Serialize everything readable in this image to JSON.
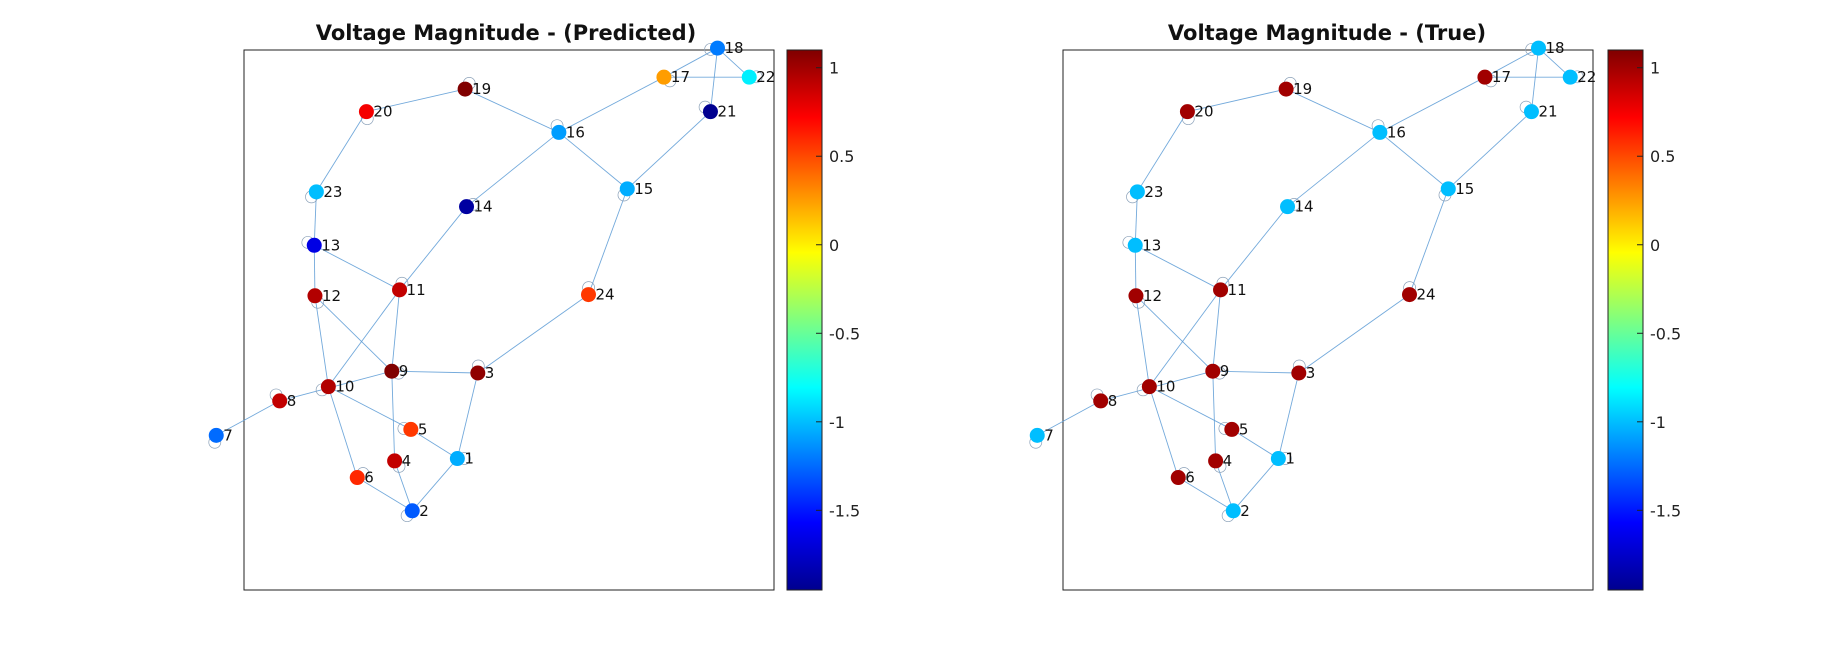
{
  "colorbar": {
    "min": -1.95,
    "max": 1.1,
    "ticks": [
      1,
      0.5,
      0,
      -0.5,
      -1,
      -1.5
    ],
    "tick_labels": [
      "1",
      "0.5",
      "0",
      "-0.5",
      "-1",
      "-1.5"
    ],
    "colormap": "jet"
  },
  "chart_data": [
    {
      "type": "network",
      "title": "Voltage Magnitude - (Predicted)",
      "nodes": [
        {
          "id": "1",
          "x": 1.92,
          "y": 1.22,
          "value": -1.05
        },
        {
          "id": "2",
          "x": 1.28,
          "y": 0.34,
          "value": -1.3
        },
        {
          "id": "3",
          "x": 2.21,
          "y": 2.66,
          "value": 1.05
        },
        {
          "id": "4",
          "x": 1.03,
          "y": 1.18,
          "value": 0.9
        },
        {
          "id": "5",
          "x": 1.26,
          "y": 1.71,
          "value": 0.55
        },
        {
          "id": "6",
          "x": 0.5,
          "y": 0.9,
          "value": 0.6
        },
        {
          "id": "7",
          "x": -1.5,
          "y": 1.61,
          "value": -1.25
        },
        {
          "id": "8",
          "x": -0.6,
          "y": 2.19,
          "value": 0.9
        },
        {
          "id": "9",
          "x": 0.99,
          "y": 2.69,
          "value": 1.1
        },
        {
          "id": "10",
          "x": 0.09,
          "y": 2.43,
          "value": 0.95
        },
        {
          "id": "11",
          "x": 1.1,
          "y": 4.06,
          "value": 0.9
        },
        {
          "id": "12",
          "x": -0.1,
          "y": 3.96,
          "value": 0.95
        },
        {
          "id": "13",
          "x": -0.11,
          "y": 4.81,
          "value": -1.65
        },
        {
          "id": "14",
          "x": 2.05,
          "y": 5.46,
          "value": -1.85
        },
        {
          "id": "15",
          "x": 4.33,
          "y": 5.76,
          "value": -1.05
        },
        {
          "id": "16",
          "x": 3.36,
          "y": 6.71,
          "value": -1.1
        },
        {
          "id": "17",
          "x": 4.85,
          "y": 7.64,
          "value": 0.25
        },
        {
          "id": "18",
          "x": 5.61,
          "y": 8.13,
          "value": -1.2
        },
        {
          "id": "19",
          "x": 2.03,
          "y": 7.44,
          "value": 1.1
        },
        {
          "id": "20",
          "x": 0.63,
          "y": 7.06,
          "value": 0.75
        },
        {
          "id": "21",
          "x": 5.51,
          "y": 7.06,
          "value": -1.9
        },
        {
          "id": "22",
          "x": 6.06,
          "y": 7.64,
          "value": -0.85
        },
        {
          "id": "23",
          "x": -0.08,
          "y": 5.71,
          "value": -1.0
        },
        {
          "id": "24",
          "x": 3.78,
          "y": 3.98,
          "value": 0.55
        }
      ],
      "edges": [
        [
          "1",
          "2"
        ],
        [
          "1",
          "3"
        ],
        [
          "1",
          "5"
        ],
        [
          "2",
          "4"
        ],
        [
          "2",
          "6"
        ],
        [
          "3",
          "9"
        ],
        [
          "3",
          "24"
        ],
        [
          "4",
          "9"
        ],
        [
          "5",
          "10"
        ],
        [
          "6",
          "10"
        ],
        [
          "7",
          "8"
        ],
        [
          "8",
          "9"
        ],
        [
          "9",
          "11"
        ],
        [
          "9",
          "12"
        ],
        [
          "10",
          "11"
        ],
        [
          "10",
          "12"
        ],
        [
          "11",
          "13"
        ],
        [
          "11",
          "14"
        ],
        [
          "12",
          "13"
        ],
        [
          "13",
          "23"
        ],
        [
          "14",
          "16"
        ],
        [
          "15",
          "16"
        ],
        [
          "15",
          "21"
        ],
        [
          "15",
          "24"
        ],
        [
          "16",
          "17"
        ],
        [
          "16",
          "19"
        ],
        [
          "17",
          "18"
        ],
        [
          "17",
          "22"
        ],
        [
          "18",
          "21"
        ],
        [
          "18",
          "22"
        ],
        [
          "19",
          "20"
        ],
        [
          "20",
          "23"
        ]
      ]
    },
    {
      "type": "network",
      "title": "Voltage Magnitude - (True)",
      "nodes": [
        {
          "id": "1",
          "x": 1.92,
          "y": 1.22,
          "value": -1.0
        },
        {
          "id": "2",
          "x": 1.28,
          "y": 0.34,
          "value": -1.0
        },
        {
          "id": "3",
          "x": 2.21,
          "y": 2.66,
          "value": 1.0
        },
        {
          "id": "4",
          "x": 1.03,
          "y": 1.18,
          "value": 1.0
        },
        {
          "id": "5",
          "x": 1.26,
          "y": 1.71,
          "value": 1.0
        },
        {
          "id": "6",
          "x": 0.5,
          "y": 0.9,
          "value": 1.0
        },
        {
          "id": "7",
          "x": -1.5,
          "y": 1.61,
          "value": -1.0
        },
        {
          "id": "8",
          "x": -0.6,
          "y": 2.19,
          "value": 1.0
        },
        {
          "id": "9",
          "x": 0.99,
          "y": 2.69,
          "value": 1.0
        },
        {
          "id": "10",
          "x": 0.09,
          "y": 2.43,
          "value": 1.0
        },
        {
          "id": "11",
          "x": 1.1,
          "y": 4.06,
          "value": 1.0
        },
        {
          "id": "12",
          "x": -0.1,
          "y": 3.96,
          "value": 1.0
        },
        {
          "id": "13",
          "x": -0.11,
          "y": 4.81,
          "value": -1.0
        },
        {
          "id": "14",
          "x": 2.05,
          "y": 5.46,
          "value": -1.0
        },
        {
          "id": "15",
          "x": 4.33,
          "y": 5.76,
          "value": -1.0
        },
        {
          "id": "16",
          "x": 3.36,
          "y": 6.71,
          "value": -1.0
        },
        {
          "id": "17",
          "x": 4.85,
          "y": 7.64,
          "value": 1.0
        },
        {
          "id": "18",
          "x": 5.61,
          "y": 8.13,
          "value": -1.0
        },
        {
          "id": "19",
          "x": 2.03,
          "y": 7.44,
          "value": 1.0
        },
        {
          "id": "20",
          "x": 0.63,
          "y": 7.06,
          "value": 1.0
        },
        {
          "id": "21",
          "x": 5.51,
          "y": 7.06,
          "value": -1.0
        },
        {
          "id": "22",
          "x": 6.06,
          "y": 7.64,
          "value": -1.0
        },
        {
          "id": "23",
          "x": -0.08,
          "y": 5.71,
          "value": -1.0
        },
        {
          "id": "24",
          "x": 3.78,
          "y": 3.98,
          "value": 1.0
        }
      ],
      "edges": [
        [
          "1",
          "2"
        ],
        [
          "1",
          "3"
        ],
        [
          "1",
          "5"
        ],
        [
          "2",
          "4"
        ],
        [
          "2",
          "6"
        ],
        [
          "3",
          "9"
        ],
        [
          "3",
          "24"
        ],
        [
          "4",
          "9"
        ],
        [
          "5",
          "10"
        ],
        [
          "6",
          "10"
        ],
        [
          "7",
          "8"
        ],
        [
          "8",
          "9"
        ],
        [
          "9",
          "11"
        ],
        [
          "9",
          "12"
        ],
        [
          "10",
          "11"
        ],
        [
          "10",
          "12"
        ],
        [
          "11",
          "13"
        ],
        [
          "11",
          "14"
        ],
        [
          "12",
          "13"
        ],
        [
          "13",
          "23"
        ],
        [
          "14",
          "16"
        ],
        [
          "15",
          "16"
        ],
        [
          "15",
          "21"
        ],
        [
          "15",
          "24"
        ],
        [
          "16",
          "17"
        ],
        [
          "16",
          "19"
        ],
        [
          "17",
          "18"
        ],
        [
          "17",
          "22"
        ],
        [
          "18",
          "21"
        ],
        [
          "18",
          "22"
        ],
        [
          "19",
          "20"
        ],
        [
          "20",
          "23"
        ]
      ]
    }
  ]
}
